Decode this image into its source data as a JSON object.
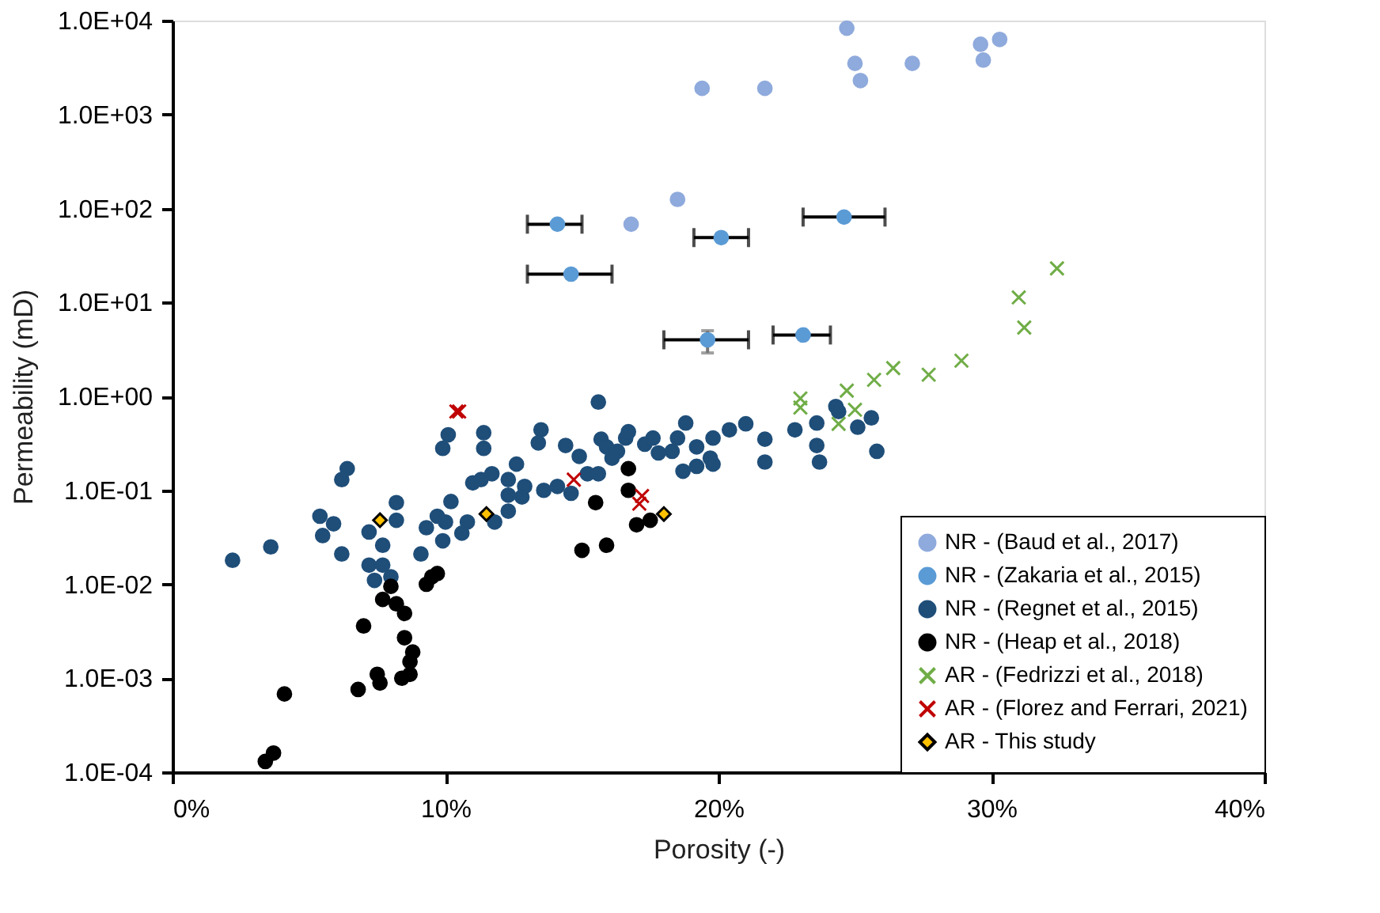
{
  "chart_data": {
    "type": "scatter",
    "xlabel": "Porosity (-)",
    "ylabel": "Permeability (mD)",
    "log": "y",
    "grid": false,
    "legend": "bottom right",
    "xlim": [
      0,
      40
    ],
    "xticks": [
      {
        "value": 0,
        "label": "0%"
      },
      {
        "value": 10,
        "label": "10%"
      },
      {
        "value": 20,
        "label": "20%"
      },
      {
        "value": 30,
        "label": "30%"
      },
      {
        "value": 40,
        "label": "40%"
      }
    ],
    "ylim": [
      0.0001,
      10000
    ],
    "yticks": [
      {
        "value": 0.0001,
        "label": "1.0E-04"
      },
      {
        "value": 0.001,
        "label": "1.0E-03"
      },
      {
        "value": 0.01,
        "label": "1.0E-02"
      },
      {
        "value": 0.1,
        "label": "1.0E-01"
      },
      {
        "value": 1,
        "label": "1.0E+00"
      },
      {
        "value": 10,
        "label": "1.0E+01"
      },
      {
        "value": 100,
        "label": "1.0E+02"
      },
      {
        "value": 1000,
        "label": "1.0E+03"
      },
      {
        "value": 10000,
        "label": "1.0E+04"
      }
    ],
    "series": [
      {
        "name": "NR - (Baud et al., 2017)",
        "color": "#8faadc",
        "marker": "circle",
        "x": [
          19.4,
          21.7,
          24.7,
          25.0,
          25.2,
          27.1,
          29.6,
          29.7,
          30.3,
          18.5,
          16.8
        ],
        "values": [
          1900,
          1900,
          8300,
          3500,
          2300,
          3500,
          5600,
          3800,
          6300,
          125,
          68
        ]
      },
      {
        "name": "NR - (Zakaria et al., 2015)",
        "color": "#5b9bd5",
        "marker": "circle",
        "x": [
          14.1,
          14.6,
          20.1,
          24.6,
          19.6,
          23.1
        ],
        "values": [
          68,
          20,
          49,
          81,
          4.0,
          4.5
        ],
        "xerrors": [
          [
            13.0,
            15.0
          ],
          [
            13.0,
            16.1
          ],
          [
            19.1,
            21.1
          ],
          [
            23.1,
            26.1
          ],
          [
            18.0,
            21.1
          ],
          [
            22.0,
            24.1
          ]
        ],
        "errors": [
          null,
          null,
          null,
          null,
          [
            2.9,
            5.0
          ],
          null
        ]
      },
      {
        "name": "NR - (Regnet et al., 2015)",
        "color": "#1f4e79",
        "marker": "circle",
        "x": [
          2.2,
          3.6,
          5.4,
          5.5,
          5.9,
          6.2,
          6.2,
          6.4,
          7.2,
          7.2,
          7.7,
          7.4,
          8.0,
          7.7,
          8.2,
          8.2,
          9.1,
          9.3,
          9.7,
          9.9,
          10.0,
          9.9,
          10.1,
          10.2,
          10.6,
          10.8,
          11.0,
          11.3,
          11.4,
          11.4,
          11.7,
          11.8,
          12.3,
          12.6,
          12.3,
          12.8,
          12.9,
          12.3,
          13.5,
          13.4,
          13.6,
          14.1,
          14.4,
          14.9,
          14.6,
          15.2,
          15.6,
          15.6,
          15.7,
          15.9,
          16.1,
          16.3,
          16.6,
          16.7,
          17.3,
          17.6,
          17.8,
          18.3,
          18.5,
          18.8,
          18.7,
          19.2,
          19.2,
          19.7,
          19.8,
          19.8,
          20.4,
          21.0,
          21.7,
          21.7,
          22.8,
          23.6,
          23.6,
          23.7,
          24.3,
          24.4,
          25.1,
          25.6,
          25.8
        ],
        "values": [
          0.018,
          0.025,
          0.053,
          0.033,
          0.044,
          0.021,
          0.13,
          0.17,
          0.036,
          0.016,
          0.016,
          0.011,
          0.012,
          0.026,
          0.074,
          0.048,
          0.021,
          0.04,
          0.053,
          0.029,
          0.046,
          0.28,
          0.39,
          0.076,
          0.035,
          0.046,
          0.12,
          0.13,
          0.41,
          0.28,
          0.15,
          0.046,
          0.13,
          0.19,
          0.089,
          0.085,
          0.11,
          0.06,
          0.44,
          0.32,
          0.1,
          0.11,
          0.3,
          0.23,
          0.093,
          0.15,
          0.15,
          0.87,
          0.35,
          0.29,
          0.22,
          0.26,
          0.36,
          0.42,
          0.31,
          0.36,
          0.25,
          0.26,
          0.36,
          0.52,
          0.16,
          0.18,
          0.29,
          0.22,
          0.36,
          0.19,
          0.44,
          0.51,
          0.35,
          0.2,
          0.44,
          0.52,
          0.3,
          0.2,
          0.78,
          0.69,
          0.47,
          0.59,
          0.26
        ]
      },
      {
        "name": "NR - (Heap et al., 2018)",
        "color": "#000000",
        "marker": "circle",
        "x": [
          16.7,
          16.7,
          15.5,
          17.0,
          17.5,
          15.0,
          15.9,
          9.7,
          9.5,
          9.3,
          8.0,
          7.7,
          8.2,
          8.5,
          7.0,
          8.5,
          8.8,
          8.7,
          8.7,
          8.4,
          7.5,
          7.6,
          6.8,
          4.1,
          3.7,
          3.4
        ],
        "values": [
          0.17,
          0.1,
          0.074,
          0.043,
          0.048,
          0.023,
          0.026,
          0.013,
          0.012,
          0.01,
          0.0095,
          0.0069,
          0.0062,
          0.0049,
          0.0036,
          0.0027,
          0.0019,
          0.0015,
          0.0011,
          0.001,
          0.0011,
          0.00089,
          0.00076,
          0.00068,
          0.00016,
          0.00013
        ]
      },
      {
        "name": "AR - (Fedrizzi et al., 2018)",
        "color": "#70ad47",
        "marker": "cross",
        "x": [
          32.4,
          31.0,
          31.2,
          28.9,
          27.7,
          26.4,
          25.7,
          24.7,
          23.0,
          23.0,
          24.4,
          25.0
        ],
        "values": [
          23,
          11.3,
          5.4,
          2.4,
          1.7,
          2.0,
          1.5,
          1.15,
          0.95,
          0.76,
          0.51,
          0.72
        ]
      },
      {
        "name": "AR - (Florez and Ferrari, 2021)",
        "color": "#c00000",
        "marker": "cross",
        "x": [
          10.5,
          10.4,
          14.7,
          17.2,
          17.1
        ],
        "values": [
          0.69,
          0.69,
          0.13,
          0.087,
          0.072
        ]
      },
      {
        "name": "AR - This study",
        "color": "#ffc000",
        "marker": "diamond",
        "x": [
          7.6,
          11.5,
          18.0
        ],
        "values": [
          0.048,
          0.056,
          0.056
        ]
      }
    ]
  }
}
